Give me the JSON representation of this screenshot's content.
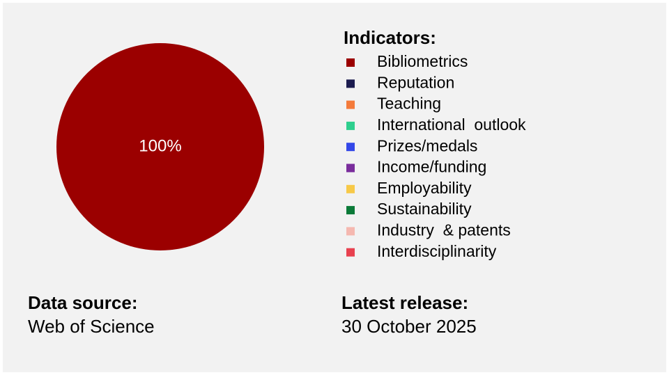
{
  "chart_data": {
    "type": "pie",
    "legend_title": "Indicators:",
    "categories": [
      "Bibliometrics",
      "Reputation",
      "Teaching",
      "International  outlook",
      "Prizes/medals",
      "Income/funding",
      "Employability",
      "Sustainability",
      "Industry  & patents",
      "Interdisciplinarity"
    ],
    "values": [
      100,
      0,
      0,
      0,
      0,
      0,
      0,
      0,
      0,
      0
    ],
    "value_labels": [
      "100%",
      null,
      null,
      null,
      null,
      null,
      null,
      null,
      null,
      null
    ],
    "colors": [
      "#9b0000",
      "#1c1c4f",
      "#f47b3b",
      "#2ecf8e",
      "#3347e8",
      "#7a2d9c",
      "#f7c948",
      "#0b7a38",
      "#f5b8b0",
      "#e8414f"
    ],
    "legend_position": "right"
  },
  "data_source": {
    "label": "Data source:",
    "value": "Web of Science"
  },
  "latest_release": {
    "label": "Latest release:",
    "value": "30 October 2025"
  }
}
